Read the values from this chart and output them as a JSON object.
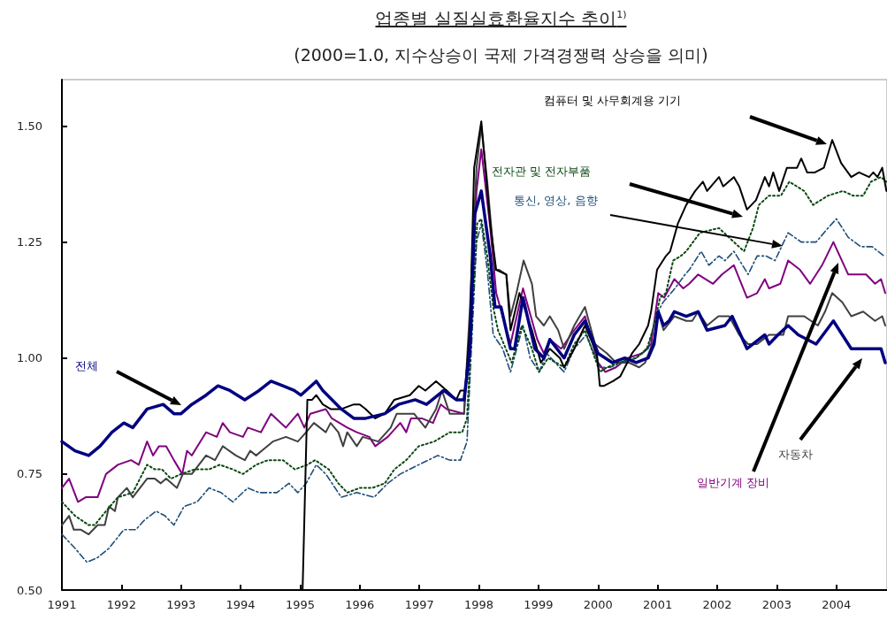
{
  "chart_data": {
    "type": "line",
    "title": "업종별 실질실효환율지수 추이$^{1)}$",
    "subtitle": "(2000=1.0, 지수상승이 국제 가격경쟁력 상승을 의미)",
    "xlim": [
      1991,
      2004.85
    ],
    "xticks": [
      1991,
      1992,
      1993,
      1994,
      1995,
      1996,
      1997,
      1998,
      1999,
      2000,
      2001,
      2002,
      2003,
      2004
    ],
    "ylim": [
      0.5,
      1.6
    ],
    "yticks": [
      {
        "value": 0.5,
        "label": "0.50"
      },
      {
        "value": 0.75,
        "label": "0.75"
      },
      {
        "value": 1,
        "label": "1.00"
      },
      {
        "value": 1.25,
        "label": "1.25"
      },
      {
        "value": 1.5,
        "label": "1.50"
      }
    ],
    "grid": false,
    "legend": false,
    "marker": "none",
    "series": [
      {
        "name": "전체",
        "color": "#000080",
        "line_style": "solid",
        "x": [
          1991.0,
          1991.22,
          1991.45,
          1991.64,
          1991.84,
          1992.04,
          1992.19,
          1992.43,
          1992.7,
          1992.88,
          1993.0,
          1993.18,
          1993.42,
          1993.62,
          1993.82,
          1994.07,
          1994.31,
          1994.51,
          1994.71,
          1994.9,
          1995.01,
          1995.27,
          1995.38,
          1995.69,
          1995.9,
          1996.1,
          1996.42,
          1996.65,
          1996.93,
          1997.12,
          1997.41,
          1997.62,
          1997.75,
          1997.85,
          1997.93,
          1998.04,
          1998.19,
          1998.27,
          1998.37,
          1998.53,
          1998.6,
          1998.74,
          1998.94,
          1999.09,
          1999.19,
          1999.31,
          1999.43,
          1999.6,
          1999.78,
          2000.0,
          2000.24,
          2000.45,
          2000.64,
          2000.84,
          2000.94,
          2001.01,
          2001.1,
          2001.19,
          2001.28,
          2001.48,
          2001.68,
          2001.83,
          2002.13,
          2002.25,
          2002.5,
          2002.8,
          2002.87,
          2003.02,
          2003.19,
          2003.36,
          2003.66,
          2003.95,
          2004.25,
          2004.55,
          2004.75,
          2004.82
        ],
        "values": [
          0.82,
          0.8,
          0.79,
          0.81,
          0.84,
          0.86,
          0.85,
          0.89,
          0.9,
          0.88,
          0.88,
          0.9,
          0.92,
          0.94,
          0.93,
          0.91,
          0.93,
          0.95,
          0.94,
          0.93,
          0.92,
          0.95,
          0.93,
          0.89,
          0.87,
          0.87,
          0.88,
          0.9,
          0.91,
          0.9,
          0.93,
          0.91,
          0.91,
          1.02,
          1.31,
          1.36,
          1.22,
          1.11,
          1.11,
          1.02,
          1.02,
          1.13,
          1.02,
          1.0,
          1.04,
          1.02,
          1.0,
          1.05,
          1.08,
          1.01,
          0.99,
          1.0,
          0.99,
          1.0,
          1.03,
          1.1,
          1.07,
          1.08,
          1.1,
          1.09,
          1.1,
          1.06,
          1.07,
          1.09,
          1.02,
          1.05,
          1.03,
          1.05,
          1.07,
          1.05,
          1.03,
          1.08,
          1.02,
          1.02,
          1.02,
          0.99
        ]
      },
      {
        "name": "컴퓨터 및 사무회계용 기기",
        "color": "#000000",
        "line_style": "solid",
        "x": [
          1995.04,
          1995.12,
          1995.2,
          1995.27,
          1995.38,
          1995.51,
          1995.69,
          1995.9,
          1996.0,
          1996.1,
          1996.26,
          1996.42,
          1996.58,
          1996.84,
          1996.99,
          1997.1,
          1997.28,
          1997.46,
          1997.62,
          1997.69,
          1997.77,
          1997.85,
          1997.92,
          1998.04,
          1998.19,
          1998.29,
          1998.46,
          1998.53,
          1998.68,
          1998.89,
          1999.04,
          1999.19,
          1999.36,
          1999.43,
          1999.6,
          1999.78,
          1999.98,
          2000.03,
          2000.1,
          2000.25,
          2000.37,
          2000.57,
          2000.69,
          2000.84,
          2000.89,
          2000.99,
          2001.14,
          2001.21,
          2001.34,
          2001.48,
          2001.63,
          2001.76,
          2001.83,
          2002.03,
          2002.1,
          2002.28,
          2002.37,
          2002.5,
          2002.65,
          2002.8,
          2002.87,
          2002.94,
          2003.04,
          2003.17,
          2003.34,
          2003.41,
          2003.51,
          2003.64,
          2003.79,
          2003.93,
          2004.08,
          2004.25,
          2004.38,
          2004.55,
          2004.62,
          2004.69,
          2004.77,
          2004.84
        ],
        "values": [
          0.5,
          0.91,
          0.91,
          0.92,
          0.9,
          0.89,
          0.89,
          0.9,
          0.9,
          0.89,
          0.87,
          0.88,
          0.91,
          0.92,
          0.94,
          0.93,
          0.95,
          0.93,
          0.91,
          0.93,
          0.93,
          1.07,
          1.41,
          1.51,
          1.29,
          1.19,
          1.18,
          1.06,
          1.14,
          1.06,
          0.99,
          1.02,
          1.0,
          0.98,
          1.02,
          1.07,
          1.01,
          0.94,
          0.94,
          0.95,
          0.96,
          1.01,
          1.03,
          1.07,
          1.1,
          1.19,
          1.22,
          1.23,
          1.29,
          1.33,
          1.36,
          1.38,
          1.36,
          1.39,
          1.37,
          1.39,
          1.37,
          1.32,
          1.34,
          1.39,
          1.37,
          1.4,
          1.36,
          1.41,
          1.41,
          1.43,
          1.4,
          1.4,
          1.41,
          1.47,
          1.42,
          1.39,
          1.4,
          1.39,
          1.4,
          1.39,
          1.41,
          1.36
        ]
      },
      {
        "name": "전자관 및 전자부품",
        "color": "#0a4a12",
        "line_style": "dotted",
        "x": [
          1991.0,
          1991.22,
          1991.45,
          1991.55,
          1991.74,
          1991.94,
          1992.19,
          1992.43,
          1992.56,
          1992.68,
          1992.83,
          1993.0,
          1993.23,
          1993.47,
          1993.65,
          1993.87,
          1994.04,
          1994.26,
          1994.46,
          1994.71,
          1994.91,
          1995.12,
          1995.25,
          1995.48,
          1995.64,
          1995.79,
          1996.0,
          1996.21,
          1996.42,
          1996.58,
          1996.78,
          1996.99,
          1997.25,
          1997.51,
          1997.72,
          1997.8,
          1997.88,
          1997.97,
          1998.04,
          1998.14,
          1998.24,
          1998.32,
          1998.55,
          1998.72,
          1998.89,
          1999.01,
          1999.16,
          1999.43,
          1999.6,
          1999.78,
          2000.03,
          2000.15,
          2000.35,
          2000.64,
          2000.82,
          2000.94,
          2001.04,
          2001.14,
          2001.26,
          2001.39,
          2001.48,
          2001.71,
          2002.03,
          2002.28,
          2002.45,
          2002.6,
          2002.7,
          2002.87,
          2003.07,
          2003.21,
          2003.46,
          2003.61,
          2003.86,
          2004.11,
          2004.28,
          2004.45,
          2004.58,
          2004.75,
          2004.84
        ],
        "values": [
          0.69,
          0.66,
          0.64,
          0.64,
          0.67,
          0.7,
          0.71,
          0.77,
          0.76,
          0.76,
          0.74,
          0.75,
          0.76,
          0.76,
          0.77,
          0.76,
          0.75,
          0.77,
          0.78,
          0.78,
          0.76,
          0.77,
          0.78,
          0.76,
          0.73,
          0.71,
          0.72,
          0.72,
          0.73,
          0.76,
          0.78,
          0.81,
          0.82,
          0.84,
          0.84,
          0.87,
          1.07,
          1.29,
          1.3,
          1.22,
          1.11,
          1.06,
          0.99,
          1.07,
          1.02,
          0.97,
          1.0,
          0.98,
          1.03,
          1.06,
          0.97,
          0.98,
          0.99,
          1.0,
          1.02,
          1.07,
          1.13,
          1.14,
          1.21,
          1.22,
          1.23,
          1.27,
          1.28,
          1.25,
          1.23,
          1.28,
          1.33,
          1.35,
          1.35,
          1.38,
          1.36,
          1.33,
          1.35,
          1.36,
          1.35,
          1.35,
          1.38,
          1.39,
          1.38
        ]
      },
      {
        "name": "통신, 영상, 음향",
        "color": "#1f4e79",
        "line_style": "dashed",
        "x": [
          1991.0,
          1991.22,
          1991.42,
          1991.6,
          1991.79,
          1992.04,
          1992.24,
          1992.38,
          1992.58,
          1992.73,
          1992.88,
          1993.05,
          1993.27,
          1993.47,
          1993.67,
          1993.87,
          1994.12,
          1994.31,
          1994.61,
          1994.81,
          1994.96,
          1995.1,
          1995.27,
          1995.43,
          1995.69,
          1995.95,
          1996.24,
          1996.47,
          1996.68,
          1996.99,
          1997.31,
          1997.51,
          1997.69,
          1997.8,
          1997.87,
          1997.96,
          1998.04,
          1998.14,
          1998.24,
          1998.4,
          1998.53,
          1998.74,
          1998.86,
          1999.01,
          1999.14,
          1999.28,
          1999.43,
          1999.6,
          1999.8,
          2000.03,
          2000.2,
          2000.4,
          2000.64,
          2000.84,
          2000.97,
          2001.09,
          2001.29,
          2001.46,
          2001.53,
          2001.73,
          2001.86,
          2002.03,
          2002.13,
          2002.28,
          2002.52,
          2002.67,
          2002.82,
          2002.97,
          2003.19,
          2003.41,
          2003.66,
          2003.86,
          2004.0,
          2004.2,
          2004.41,
          2004.6,
          2004.8
        ],
        "values": [
          0.62,
          0.59,
          0.56,
          0.57,
          0.59,
          0.63,
          0.63,
          0.65,
          0.67,
          0.66,
          0.64,
          0.68,
          0.69,
          0.72,
          0.71,
          0.69,
          0.72,
          0.71,
          0.71,
          0.73,
          0.71,
          0.73,
          0.77,
          0.75,
          0.7,
          0.71,
          0.7,
          0.73,
          0.75,
          0.77,
          0.79,
          0.78,
          0.78,
          0.82,
          1.01,
          1.25,
          1.29,
          1.19,
          1.05,
          1.02,
          0.97,
          1.07,
          1.0,
          0.97,
          1.01,
          0.99,
          0.97,
          1.02,
          1.05,
          0.98,
          0.98,
          0.99,
          1.0,
          1.02,
          1.09,
          1.12,
          1.15,
          1.18,
          1.19,
          1.23,
          1.2,
          1.22,
          1.21,
          1.23,
          1.18,
          1.22,
          1.22,
          1.21,
          1.27,
          1.25,
          1.25,
          1.28,
          1.3,
          1.26,
          1.24,
          1.24,
          1.22
        ]
      },
      {
        "name": "자동차",
        "color": "#404040",
        "line_style": "solid",
        "x": [
          1991.0,
          1991.12,
          1991.2,
          1991.32,
          1991.45,
          1991.6,
          1991.72,
          1991.79,
          1991.89,
          1991.94,
          1992.09,
          1992.19,
          1992.43,
          1992.56,
          1992.66,
          1992.75,
          1992.93,
          1993.03,
          1993.18,
          1993.42,
          1993.57,
          1993.7,
          1993.92,
          1994.07,
          1994.16,
          1994.26,
          1994.54,
          1994.76,
          1994.96,
          1995.1,
          1995.23,
          1995.43,
          1995.51,
          1995.64,
          1995.72,
          1995.79,
          1995.95,
          1996.05,
          1996.31,
          1996.52,
          1996.62,
          1996.91,
          1997.1,
          1997.28,
          1997.38,
          1997.51,
          1997.75,
          1997.85,
          1997.96,
          1998.04,
          1998.14,
          1998.27,
          1998.34,
          1998.46,
          1998.53,
          1998.63,
          1998.75,
          1998.89,
          1998.96,
          1999.09,
          1999.19,
          1999.33,
          1999.43,
          1999.6,
          1999.78,
          1999.95,
          2000.15,
          2000.3,
          2000.52,
          2000.69,
          2000.79,
          2000.94,
          2001.01,
          2001.1,
          2001.28,
          2001.48,
          2001.58,
          2001.68,
          2001.83,
          2002.02,
          2002.2,
          2002.37,
          2002.52,
          2002.67,
          2002.87,
          2003.11,
          2003.19,
          2003.46,
          2003.69,
          2003.81,
          2003.93,
          2004.1,
          2004.25,
          2004.45,
          2004.65,
          2004.77,
          2004.82
        ],
        "values": [
          0.64,
          0.66,
          0.63,
          0.63,
          0.62,
          0.64,
          0.64,
          0.68,
          0.67,
          0.7,
          0.72,
          0.7,
          0.74,
          0.74,
          0.73,
          0.74,
          0.72,
          0.75,
          0.75,
          0.79,
          0.78,
          0.81,
          0.79,
          0.78,
          0.8,
          0.79,
          0.82,
          0.83,
          0.82,
          0.84,
          0.86,
          0.84,
          0.86,
          0.84,
          0.81,
          0.84,
          0.81,
          0.83,
          0.82,
          0.85,
          0.88,
          0.88,
          0.85,
          0.89,
          0.93,
          0.88,
          0.88,
          1.11,
          1.41,
          1.5,
          1.38,
          1.19,
          1.19,
          1.18,
          1.09,
          1.14,
          1.21,
          1.16,
          1.09,
          1.07,
          1.09,
          1.06,
          1.02,
          1.07,
          1.11,
          1.03,
          1.01,
          0.99,
          0.99,
          0.98,
          0.99,
          1.04,
          1.1,
          1.06,
          1.09,
          1.08,
          1.08,
          1.1,
          1.07,
          1.09,
          1.09,
          1.05,
          1.03,
          1.03,
          1.05,
          1.05,
          1.09,
          1.09,
          1.07,
          1.1,
          1.14,
          1.12,
          1.09,
          1.1,
          1.08,
          1.09,
          1.07
        ]
      },
      {
        "name": "일반기계 장비",
        "color": "#800080",
        "line_style": "solid",
        "x": [
          1991.0,
          1991.12,
          1991.27,
          1991.4,
          1991.6,
          1991.74,
          1991.94,
          1992.16,
          1992.29,
          1992.43,
          1992.53,
          1992.63,
          1992.75,
          1992.88,
          1993.02,
          1993.1,
          1993.18,
          1993.42,
          1993.6,
          1993.7,
          1993.82,
          1994.04,
          1994.12,
          1994.34,
          1994.51,
          1994.76,
          1994.96,
          1995.07,
          1995.17,
          1995.43,
          1995.53,
          1995.79,
          1995.95,
          1996.16,
          1996.26,
          1996.47,
          1996.68,
          1996.78,
          1996.86,
          1997.04,
          1997.23,
          1997.36,
          1997.46,
          1997.75,
          1997.85,
          1997.96,
          1998.04,
          1998.19,
          1998.29,
          1998.53,
          1998.74,
          1998.98,
          1999.09,
          1999.19,
          1999.38,
          1999.6,
          1999.78,
          2000.0,
          2000.12,
          2000.3,
          2000.5,
          2000.74,
          2000.89,
          2001.01,
          2001.11,
          2001.28,
          2001.43,
          2001.53,
          2001.68,
          2001.93,
          2002.08,
          2002.28,
          2002.5,
          2002.67,
          2002.8,
          2002.87,
          2003.06,
          2003.19,
          2003.39,
          2003.56,
          2003.76,
          2003.95,
          2004.2,
          2004.5,
          2004.65,
          2004.75,
          2004.82
        ],
        "values": [
          0.72,
          0.74,
          0.69,
          0.7,
          0.7,
          0.75,
          0.77,
          0.78,
          0.77,
          0.82,
          0.79,
          0.81,
          0.81,
          0.78,
          0.75,
          0.8,
          0.79,
          0.84,
          0.83,
          0.86,
          0.84,
          0.83,
          0.85,
          0.84,
          0.88,
          0.85,
          0.88,
          0.85,
          0.88,
          0.89,
          0.87,
          0.85,
          0.84,
          0.83,
          0.81,
          0.83,
          0.86,
          0.84,
          0.87,
          0.87,
          0.86,
          0.9,
          0.89,
          0.88,
          1.07,
          1.36,
          1.45,
          1.28,
          1.14,
          1.03,
          1.15,
          1.04,
          1.01,
          1.04,
          1.02,
          1.06,
          1.09,
          0.99,
          0.97,
          0.98,
          1.0,
          1.01,
          1.03,
          1.14,
          1.13,
          1.17,
          1.15,
          1.16,
          1.18,
          1.16,
          1.18,
          1.2,
          1.13,
          1.14,
          1.17,
          1.15,
          1.16,
          1.21,
          1.19,
          1.16,
          1.2,
          1.25,
          1.18,
          1.18,
          1.16,
          1.17,
          1.14
        ]
      }
    ]
  }
}
